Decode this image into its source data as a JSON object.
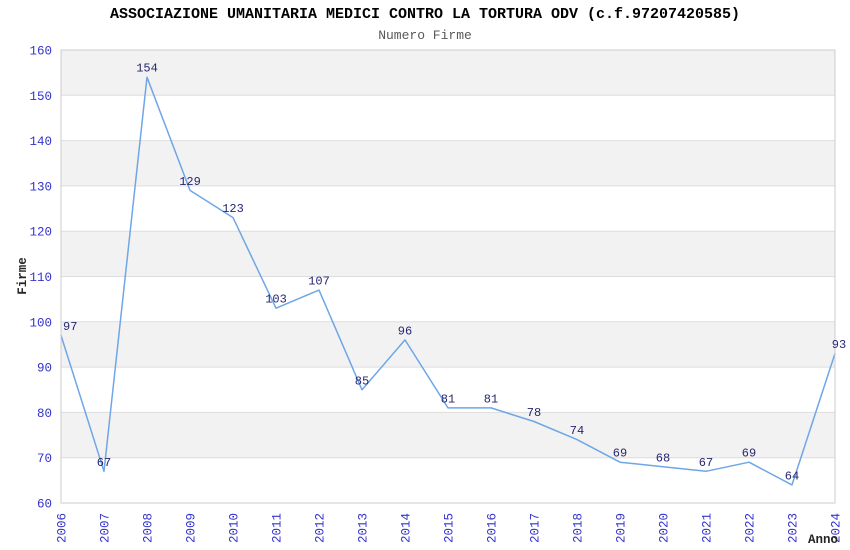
{
  "header": {
    "title": "ASSOCIAZIONE UMANITARIA MEDICI CONTRO LA TORTURA ODV (c.f.97207420585)",
    "subtitle": "Numero Firme"
  },
  "chart_data": {
    "type": "line",
    "title": "ASSOCIAZIONE UMANITARIA MEDICI CONTRO LA TORTURA ODV (c.f.97207420585)",
    "subtitle": "Numero Firme",
    "xlabel": "Anno",
    "ylabel": "Firme",
    "categories": [
      "2006",
      "2007",
      "2008",
      "2009",
      "2010",
      "2011",
      "2012",
      "2013",
      "2014",
      "2015",
      "2016",
      "2017",
      "2018",
      "2019",
      "2020",
      "2021",
      "2022",
      "2023",
      "2024"
    ],
    "values": [
      97,
      67,
      154,
      129,
      123,
      103,
      107,
      85,
      96,
      81,
      81,
      78,
      74,
      69,
      68,
      67,
      69,
      64,
      93
    ],
    "ylim": [
      60,
      160
    ],
    "ytick_step": 10,
    "grid": true,
    "legend_position": "none",
    "band_fill_alternate": true,
    "x_tick_rotation": 90,
    "colors": {
      "line": "#6ea6e6",
      "tick_label": "#3333cc",
      "data_label": "#262673",
      "band": "#f2f2f2",
      "grid": "#dddddd",
      "plot_border": "#cccccc",
      "title": "#000000",
      "subtitle": "#595959",
      "axis_title": "#262626",
      "background": "#ffffff"
    }
  }
}
